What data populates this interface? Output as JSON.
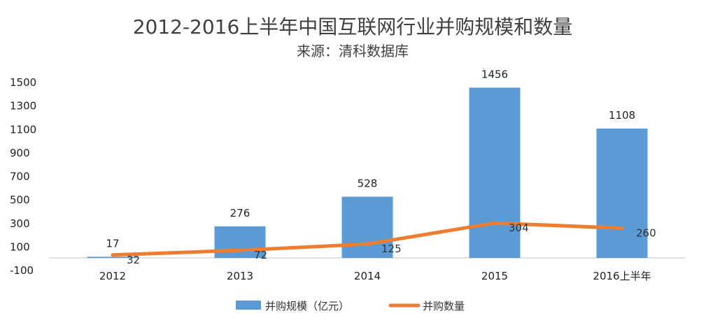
{
  "chart_data": {
    "type": "bar",
    "title": "2012-2016上半年中国互联网行业并购规模和数量",
    "subtitle": "来源：清科数据库",
    "categories": [
      "2012",
      "2013",
      "2014",
      "2015",
      "2016上半年"
    ],
    "series": [
      {
        "name": "并购规模（亿元）",
        "type": "bar",
        "color": "#5B9BD5",
        "values": [
          17,
          276,
          528,
          1456,
          1108
        ]
      },
      {
        "name": "并购数量",
        "type": "line",
        "color": "#ED7D31",
        "values": [
          32,
          72,
          125,
          304,
          260
        ]
      }
    ],
    "y_ticks": [
      "1500",
      "1300",
      "1100",
      "900",
      "700",
      "500",
      "300",
      "100",
      "-100"
    ],
    "ylim": [
      -100,
      1500
    ],
    "xlabel": "",
    "ylabel": "",
    "grid": false,
    "legend_position": "bottom"
  }
}
